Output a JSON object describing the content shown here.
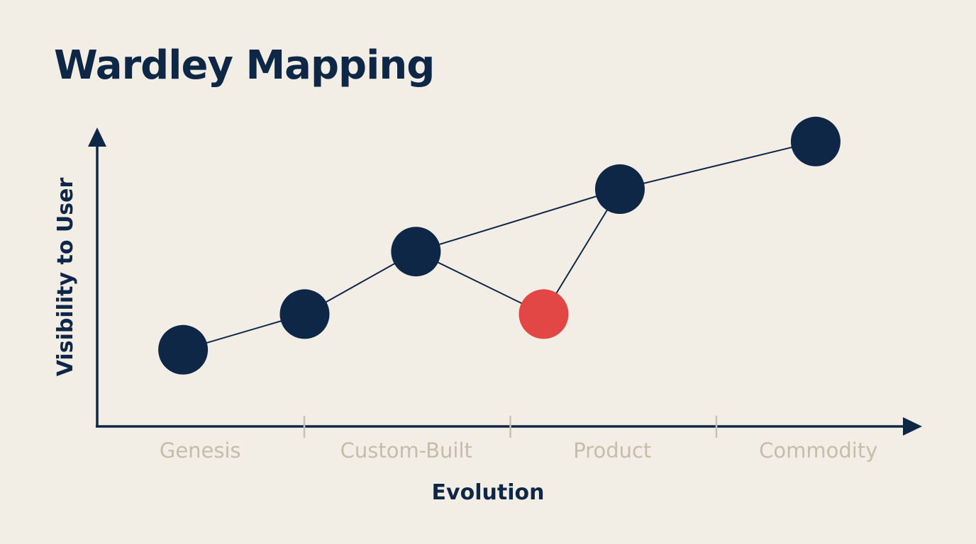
{
  "title": "Wardley Mapping",
  "axes": {
    "x_label": "Evolution",
    "y_label": "Visibility to User",
    "stages": [
      "Genesis",
      "Custom-Built",
      "Product",
      "Commodity"
    ]
  },
  "colors": {
    "background": "#F3EEE5",
    "ink": "#0F2747",
    "highlight": "#E24645",
    "stage_text": "#C7BBA9",
    "divider": "#C9C0B3"
  },
  "components": [
    {
      "evolution": 0.41,
      "visibility": 0.26,
      "highlight": false
    },
    {
      "evolution": 1.0,
      "visibility": 0.38,
      "highlight": false
    },
    {
      "evolution": 1.54,
      "visibility": 0.59,
      "highlight": false
    },
    {
      "evolution": 2.16,
      "visibility": 0.38,
      "highlight": true
    },
    {
      "evolution": 2.53,
      "visibility": 0.8,
      "highlight": false
    },
    {
      "evolution": 3.48,
      "visibility": 0.96,
      "highlight": false
    }
  ],
  "links": [
    [
      0,
      1
    ],
    [
      1,
      2
    ],
    [
      2,
      4
    ],
    [
      2,
      3
    ],
    [
      3,
      4
    ],
    [
      4,
      5
    ]
  ]
}
